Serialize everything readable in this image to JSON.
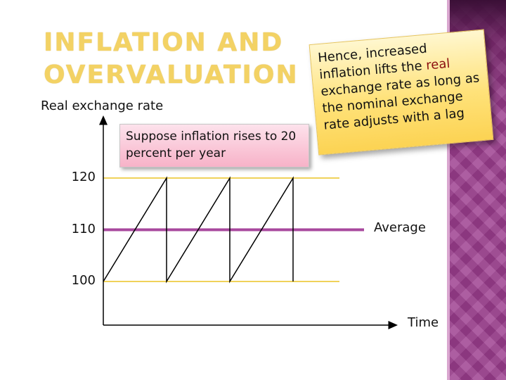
{
  "slide": {
    "title_line1": "INFLATION AND",
    "title_line2": "OVERVALUATION",
    "callout": {
      "before": "Hence, increased inflation lifts the ",
      "highlight": "real",
      "after": " exchange rate as long as the nominal exchange rate adjusts with a lag"
    },
    "note": "Suppose inflation rises to 20 percent per year",
    "colors": {
      "title": "#f3d264",
      "sidebar": "#9c3d8e",
      "average_line": "#a8489e",
      "reference_line": "#f0d25a",
      "sawtooth": "#000000",
      "highlight": "#8b1010"
    }
  },
  "chart_data": {
    "type": "line",
    "ylabel": "Real exchange rate",
    "xlabel": "Time",
    "yticks": [
      100,
      110,
      120
    ],
    "reference_lines": [
      {
        "y": 120,
        "label": ""
      },
      {
        "y": 110,
        "label": "Average"
      },
      {
        "y": 100,
        "label": ""
      }
    ],
    "series": [
      {
        "points": [
          [
            0,
            100
          ],
          [
            1,
            120
          ],
          [
            1,
            100
          ],
          [
            2,
            120
          ],
          [
            2,
            100
          ],
          [
            3,
            120
          ],
          [
            3,
            100
          ]
        ]
      }
    ]
  }
}
